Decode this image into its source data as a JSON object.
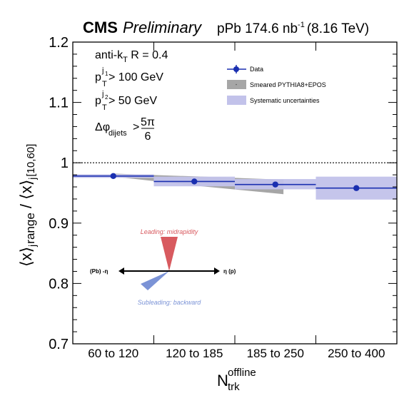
{
  "header": {
    "experiment": "CMS",
    "status": "Preliminary",
    "system": "pPb 174.6 nb",
    "lumi_exp": "-1",
    "energy": "(8.16 TeV)"
  },
  "annotations": {
    "jet_main": "anti-k",
    "jet_sub": "T",
    "jet_rest": " R = 0.4",
    "pt1_main": "p",
    "pt1_sup": "j",
    "pt1_supsub": "1",
    "pt1_sub": "T",
    "pt1_rest": " > 100 GeV",
    "pt2_main": "p",
    "pt2_sup": "j",
    "pt2_supsub": "2",
    "pt2_sub": "T",
    "pt2_rest": " > 50 GeV",
    "dphi_main": "Δφ",
    "dphi_sub": "dijets",
    "dphi_op": " > ",
    "dphi_num": "5π",
    "dphi_den": "6"
  },
  "legend": {
    "data": "Data",
    "model": "Smeared PYTHIA8+EPOS",
    "syst": "Systematic uncertainties"
  },
  "diagram": {
    "leading": "Leading: midrapidity",
    "subleading": "Subleading: backward",
    "left": "(Pb) -η",
    "right": "η (p)"
  },
  "axes": {
    "ylabel_a": "⟨x⟩",
    "ylabel_a_sub": "j",
    "ylabel_a_subsub": "range",
    "ylabel_mid": " / ",
    "ylabel_b": "⟨x⟩",
    "ylabel_b_sub": "j",
    "ylabel_b_subsub": "[10,60]",
    "xlabel_main": "N",
    "xlabel_sup": "offline",
    "xlabel_sub": "trk"
  },
  "colors": {
    "data": "#1a2fb0",
    "model": "#a6a6a6",
    "syst": "#c2c2ea",
    "leading": "#d85a5f",
    "subleading": "#7b93d6"
  },
  "chart_data": {
    "type": "scatter",
    "categories": [
      "60 to 120",
      "120 to 185",
      "185 to 250",
      "250 to 400"
    ],
    "ylim": [
      0.7,
      1.2
    ],
    "yticks": [
      "0.7",
      "0.8",
      "0.9",
      "1",
      "1.1",
      "1.2"
    ],
    "reference_line": 1.0,
    "series": [
      {
        "name": "Data",
        "values": [
          0.978,
          0.969,
          0.964,
          0.958
        ],
        "syst_low": [
          0.975,
          0.961,
          0.956,
          0.939
        ],
        "syst_high": [
          0.981,
          0.977,
          0.973,
          0.977
        ]
      },
      {
        "name": "Smeared PYTHIA8+EPOS",
        "band_low": [
          0.977,
          0.961,
          0.948
        ],
        "band_high": [
          0.982,
          0.977,
          0.972
        ],
        "band_x": [
          "60 to 120",
          "120 to 185",
          "185 to 250"
        ]
      }
    ]
  }
}
